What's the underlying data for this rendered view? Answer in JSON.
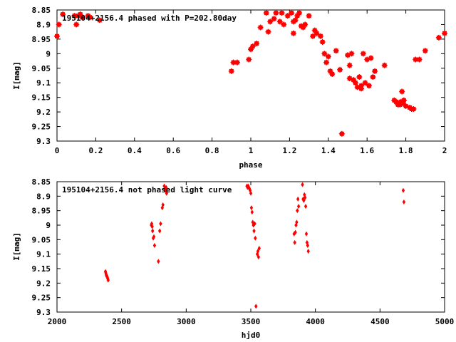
{
  "chart_data": [
    {
      "type": "scatter",
      "title": "195104+2156.4 phased with P=202.80day",
      "xlabel": "phase",
      "ylabel": "I[mag]",
      "xlim": [
        0,
        2
      ],
      "ylim": [
        8.85,
        9.3
      ],
      "y_inverted": true,
      "x_ticks": [
        "0",
        "0.2",
        "0.4",
        "0.6",
        "0.8",
        "1",
        "1.2",
        "1.4",
        "1.6",
        "1.8",
        "2"
      ],
      "y_ticks": [
        "8.85",
        "8.9",
        "8.95",
        "9",
        "9.05",
        "9.1",
        "9.15",
        "9.2",
        "9.25",
        "9.3"
      ],
      "marker": "filled-square",
      "color": "#ff0000",
      "series": [
        {
          "points": [
            [
              0.0,
              8.94
            ],
            [
              0.01,
              8.9
            ],
            [
              0.03,
              8.865
            ],
            [
              0.09,
              8.87
            ],
            [
              0.1,
              8.9
            ],
            [
              0.11,
              8.87
            ],
            [
              0.12,
              8.865
            ],
            [
              0.13,
              8.875
            ],
            [
              0.16,
              8.87
            ],
            [
              0.17,
              8.875
            ],
            [
              0.22,
              8.885
            ],
            [
              0.9,
              9.06
            ],
            [
              0.91,
              9.03
            ],
            [
              0.93,
              9.03
            ],
            [
              0.99,
              9.02
            ],
            [
              1.0,
              8.985
            ],
            [
              1.01,
              8.975
            ],
            [
              1.03,
              8.965
            ],
            [
              1.05,
              8.91
            ],
            [
              1.08,
              8.86
            ],
            [
              1.09,
              8.925
            ],
            [
              1.1,
              8.89
            ],
            [
              1.12,
              8.88
            ],
            [
              1.13,
              8.86
            ],
            [
              1.15,
              8.89
            ],
            [
              1.16,
              8.86
            ],
            [
              1.17,
              8.9
            ],
            [
              1.19,
              8.87
            ],
            [
              1.21,
              8.86
            ],
            [
              1.22,
              8.89
            ],
            [
              1.22,
              8.93
            ],
            [
              1.23,
              8.885
            ],
            [
              1.24,
              8.87
            ],
            [
              1.25,
              8.86
            ],
            [
              1.26,
              8.905
            ],
            [
              1.27,
              8.91
            ],
            [
              1.28,
              8.9
            ],
            [
              1.3,
              8.87
            ],
            [
              1.32,
              8.94
            ],
            [
              1.33,
              8.92
            ],
            [
              1.34,
              8.93
            ],
            [
              1.36,
              8.94
            ],
            [
              1.37,
              8.96
            ],
            [
              1.38,
              9.0
            ],
            [
              1.39,
              9.03
            ],
            [
              1.4,
              9.01
            ],
            [
              1.41,
              9.06
            ],
            [
              1.42,
              9.07
            ],
            [
              1.44,
              8.99
            ],
            [
              1.46,
              9.055
            ],
            [
              1.47,
              9.275
            ],
            [
              1.5,
              9.005
            ],
            [
              1.51,
              9.04
            ],
            [
              1.51,
              9.085
            ],
            [
              1.52,
              9.0
            ],
            [
              1.53,
              9.09
            ],
            [
              1.54,
              9.1
            ],
            [
              1.55,
              9.115
            ],
            [
              1.56,
              9.08
            ],
            [
              1.57,
              9.11
            ],
            [
              1.57,
              9.12
            ],
            [
              1.58,
              9.0
            ],
            [
              1.59,
              9.1
            ],
            [
              1.6,
              9.02
            ],
            [
              1.61,
              9.11
            ],
            [
              1.62,
              9.015
            ],
            [
              1.63,
              9.08
            ],
            [
              1.64,
              9.06
            ],
            [
              1.69,
              9.04
            ],
            [
              1.74,
              9.16
            ],
            [
              1.75,
              9.165
            ],
            [
              1.755,
              9.17
            ],
            [
              1.76,
              9.175
            ],
            [
              1.765,
              9.17
            ],
            [
              1.77,
              9.175
            ],
            [
              1.775,
              9.165
            ],
            [
              1.78,
              9.13
            ],
            [
              1.785,
              9.17
            ],
            [
              1.79,
              9.16
            ],
            [
              1.8,
              9.18
            ],
            [
              1.82,
              9.185
            ],
            [
              1.83,
              9.19
            ],
            [
              1.84,
              9.19
            ],
            [
              1.85,
              9.02
            ],
            [
              1.87,
              9.02
            ],
            [
              1.9,
              8.99
            ],
            [
              1.97,
              8.945
            ],
            [
              2.0,
              8.93
            ]
          ]
        }
      ]
    },
    {
      "type": "scatter",
      "title": "195104+2156.4 not phased light curve",
      "xlabel": "hjd0",
      "ylabel": "I[mag]",
      "xlim": [
        2000,
        5000
      ],
      "ylim": [
        8.85,
        9.3
      ],
      "y_inverted": true,
      "x_ticks": [
        "2000",
        "2500",
        "3000",
        "3500",
        "4000",
        "4500",
        "5000"
      ],
      "y_ticks": [
        "8.85",
        "8.9",
        "8.95",
        "9",
        "9.05",
        "9.1",
        "9.15",
        "9.2",
        "9.25",
        "9.3"
      ],
      "marker": "diamond",
      "color": "#ff0000",
      "series": [
        {
          "points": [
            [
              2375,
              9.16
            ],
            [
              2378,
              9.165
            ],
            [
              2380,
              9.17
            ],
            [
              2383,
              9.175
            ],
            [
              2386,
              9.175
            ],
            [
              2390,
              9.18
            ],
            [
              2393,
              9.185
            ],
            [
              2396,
              9.19
            ],
            [
              2730,
              9.0
            ],
            [
              2733,
              8.995
            ],
            [
              2737,
              9.005
            ],
            [
              2740,
              9.02
            ],
            [
              2745,
              9.045
            ],
            [
              2750,
              9.04
            ],
            [
              2755,
              9.07
            ],
            [
              2785,
              9.125
            ],
            [
              2795,
              9.02
            ],
            [
              2802,
              8.995
            ],
            [
              2815,
              8.94
            ],
            [
              2820,
              8.93
            ],
            [
              2830,
              8.865
            ],
            [
              2835,
              8.875
            ],
            [
              2840,
              8.88
            ],
            [
              2845,
              8.87
            ],
            [
              2848,
              8.89
            ],
            [
              3470,
              8.865
            ],
            [
              3475,
              8.87
            ],
            [
              3480,
              8.865
            ],
            [
              3485,
              8.87
            ],
            [
              3490,
              8.875
            ],
            [
              3495,
              8.88
            ],
            [
              3500,
              8.89
            ],
            [
              3505,
              8.94
            ],
            [
              3510,
              8.955
            ],
            [
              3515,
              8.99
            ],
            [
              3520,
              9.0
            ],
            [
              3525,
              9.02
            ],
            [
              3530,
              8.995
            ],
            [
              3535,
              9.045
            ],
            [
              3540,
              9.28
            ],
            [
              3550,
              9.1
            ],
            [
              3555,
              9.09
            ],
            [
              3560,
              9.11
            ],
            [
              3565,
              9.08
            ],
            [
              3835,
              9.03
            ],
            [
              3840,
              9.06
            ],
            [
              3845,
              9.025
            ],
            [
              3850,
              9.0
            ],
            [
              3855,
              8.99
            ],
            [
              3860,
              8.95
            ],
            [
              3865,
              8.91
            ],
            [
              3870,
              8.935
            ],
            [
              3900,
              8.86
            ],
            [
              3905,
              8.91
            ],
            [
              3910,
              8.915
            ],
            [
              3915,
              8.895
            ],
            [
              3920,
              8.905
            ],
            [
              3925,
              8.935
            ],
            [
              3930,
              9.03
            ],
            [
              3935,
              9.06
            ],
            [
              3940,
              9.07
            ],
            [
              3945,
              9.09
            ],
            [
              4680,
              8.88
            ],
            [
              4685,
              8.92
            ]
          ]
        }
      ]
    }
  ]
}
